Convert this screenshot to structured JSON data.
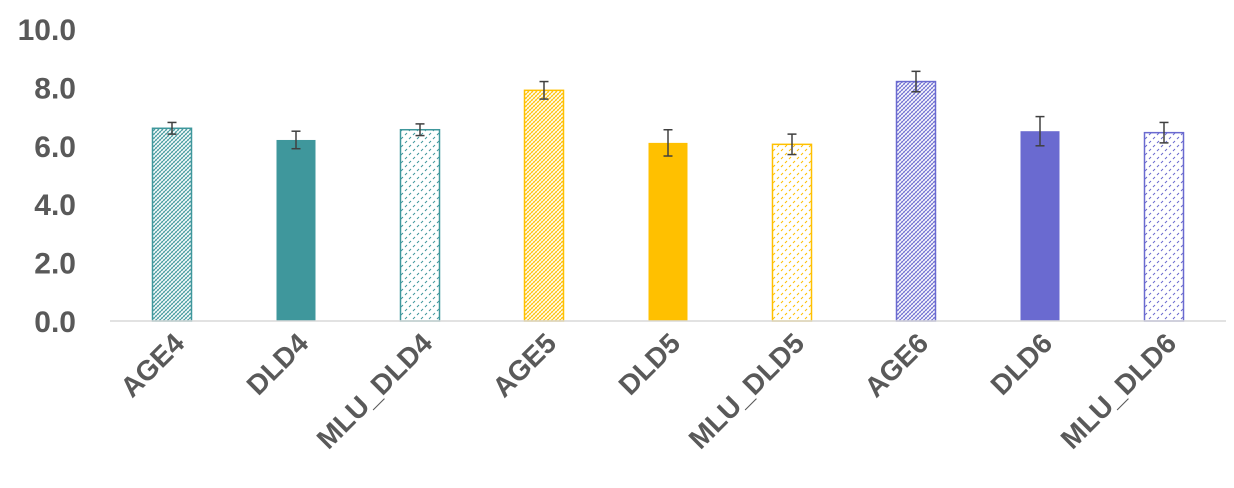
{
  "chart_data": {
    "type": "bar",
    "title": "",
    "xlabel": "",
    "ylabel": "",
    "ylim": [
      0,
      10
    ],
    "y_ticks": [
      0,
      2,
      4,
      6,
      8,
      10
    ],
    "y_tick_labels": [
      "0.0",
      "2.0",
      "4.0",
      "6.0",
      "8.0",
      "10.0"
    ],
    "grid": false,
    "categories": [
      "AGE4",
      "DLD4",
      "MLU_DLD4",
      "AGE5",
      "DLD5",
      "MLU_DLD5",
      "AGE6",
      "DLD6",
      "MLU_DLD6"
    ],
    "values": [
      6.6,
      6.2,
      6.55,
      7.9,
      6.1,
      6.05,
      8.2,
      6.5,
      6.45
    ],
    "error": [
      0.2,
      0.3,
      0.2,
      0.3,
      0.45,
      0.35,
      0.35,
      0.5,
      0.35
    ],
    "bar_styles": [
      {
        "color": "#3f979c",
        "fill": "pattern-dense"
      },
      {
        "color": "#3f979c",
        "fill": "solid"
      },
      {
        "color": "#3f979c",
        "fill": "pattern-dots"
      },
      {
        "color": "#ffc000",
        "fill": "pattern-dense"
      },
      {
        "color": "#ffc000",
        "fill": "solid"
      },
      {
        "color": "#ffc000",
        "fill": "pattern-dots"
      },
      {
        "color": "#6a6ad0",
        "fill": "pattern-dense"
      },
      {
        "color": "#6a6ad0",
        "fill": "solid"
      },
      {
        "color": "#6a6ad0",
        "fill": "pattern-dots"
      }
    ],
    "axis_color": "#d9d9d9",
    "error_bar_color": "#404040",
    "text_color": "#595959"
  }
}
